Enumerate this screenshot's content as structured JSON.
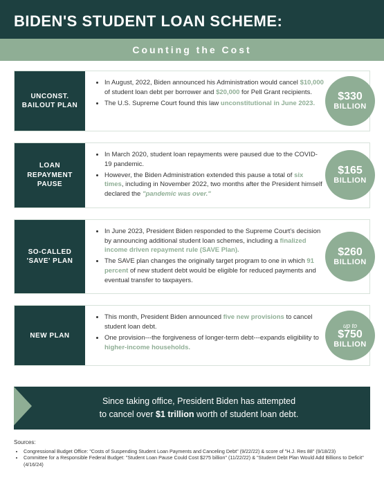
{
  "header": {
    "title": "BIDEN'S STUDENT LOAN SCHEME:",
    "subtitle": "Counting the Cost"
  },
  "colors": {
    "dark": "#1d4040",
    "accent": "#8fae95",
    "border": "#d7e2da",
    "bg": "#ffffff"
  },
  "cards": [
    {
      "label": "UNCONST. BAILOUT PLAN",
      "badge_pre": "",
      "badge_amt": "$330",
      "badge_unit": "BILLION",
      "b1a": "In August, 2022, Biden announced his Administration would cancel ",
      "b1h1": "$10,000",
      "b1b": " of student loan debt per borrower and ",
      "b1h2": "$20,000",
      "b1c": " for Pell Grant recipients.",
      "b2a": "The U.S. Supreme Court found this law ",
      "b2h1": "unconstitutional in June 2023.",
      "b2b": ""
    },
    {
      "label": "LOAN REPAYMENT PAUSE",
      "badge_pre": "",
      "badge_amt": "$165",
      "badge_unit": "BILLION",
      "b1a": "In March 2020, student loan repayments were paused due to the COVID-19 pandemic.",
      "b1h1": "",
      "b1b": "",
      "b1h2": "",
      "b1c": "",
      "b2a": "However, the Biden Administration extended this pause a total of ",
      "b2h1": "six times",
      "b2b": ", including in November 2022, two months after the President himself declared the ",
      "b2h2": "\"pandemic was over.\"",
      "b2c": ""
    },
    {
      "label": "SO-CALLED 'SAVE' PLAN",
      "badge_pre": "",
      "badge_amt": "$260",
      "badge_unit": "BILLION",
      "b1a": "In June 2023, President Biden responded to the Supreme Court's decision by announcing additional student loan schemes, including a ",
      "b1h1": "finalized income driven repayment rule (SAVE Plan).",
      "b1b": "",
      "b1h2": "",
      "b1c": "",
      "b2a": "The SAVE plan changes the originally target program to one in which ",
      "b2h1": "91 percent",
      "b2b": " of new student debt would be eligible for reduced payments and eventual transfer to taxpayers.",
      "b2h2": "",
      "b2c": ""
    },
    {
      "label": "NEW PLAN",
      "badge_pre": "up to",
      "badge_amt": "$750",
      "badge_unit": "BILLION",
      "b1a": "This month, President Biden announced ",
      "b1h1": "five new provisions",
      "b1b": " to cancel student loan debt.",
      "b1h2": "",
      "b1c": "",
      "b2a": "One provision---the forgiveness of longer-term debt---expands eligibility to ",
      "b2h1": "higher-income households.",
      "b2b": "",
      "b2h2": "",
      "b2c": ""
    }
  ],
  "banner": {
    "line1": "Since taking office, President Biden has attempted",
    "line2a": "to cancel over ",
    "strong": "$1 trillion",
    "line2b": " worth of student loan debt."
  },
  "sources": {
    "title": "Sources:",
    "items": [
      "Congressional Budget Office: \"Costs of Suspending Student Loan Payments and Canceling Debt\" (9/22/22) & score of \"H.J. Res 88\" (9/18/23)",
      "Committee for a Responsible Federal Budget: \"Student Loan Pause Could Cost $275 billion\" (11/22/22) & \"Student Debt Plan Would Add Billions to Deficit\" (4/16/24)"
    ]
  }
}
